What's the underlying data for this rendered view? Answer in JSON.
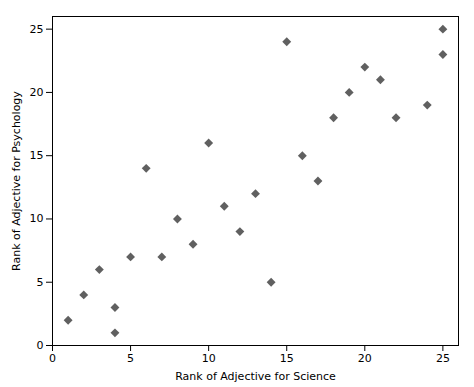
{
  "chart_data": {
    "type": "scatter",
    "x": [
      1,
      2,
      3,
      4,
      4,
      5,
      6,
      7,
      8,
      9,
      10,
      11,
      12,
      13,
      14,
      15,
      16,
      17,
      18,
      19,
      20,
      21,
      22,
      24,
      25,
      25
    ],
    "y": [
      2,
      4,
      6,
      1,
      3,
      7,
      14,
      7,
      10,
      8,
      16,
      11,
      9,
      12,
      5,
      24,
      15,
      13,
      18,
      20,
      22,
      21,
      18,
      19,
      23,
      25
    ],
    "color": "#606060",
    "marker": "diamond",
    "xlabel": "Rank of Adjective for Science",
    "ylabel": "Rank of Adjective for Psychology",
    "xlim": [
      0,
      26
    ],
    "ylim": [
      0,
      26
    ],
    "xticks": [
      0,
      5,
      10,
      15,
      20,
      25
    ],
    "yticks": [
      0,
      5,
      10,
      15,
      20,
      25
    ],
    "grid": false
  }
}
